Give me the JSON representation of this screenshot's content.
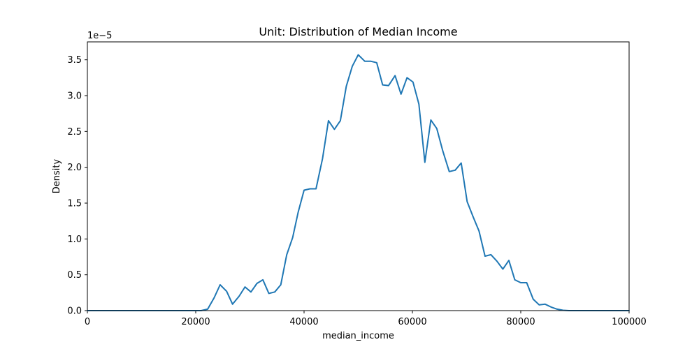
{
  "chart_data": {
    "type": "line",
    "title": "Unit: Distribution of Median Income",
    "xlabel": "median_income",
    "ylabel": "Density",
    "y_offset_label": "1e−5",
    "xlim": [
      0,
      100000
    ],
    "ylim": [
      0,
      3.75
    ],
    "x_ticks": [
      0,
      20000,
      40000,
      60000,
      80000,
      100000
    ],
    "x_tick_labels": [
      "0",
      "20000",
      "40000",
      "60000",
      "80000",
      "100000"
    ],
    "y_ticks": [
      0,
      0.5,
      1.0,
      1.5,
      2.0,
      2.5,
      3.0,
      3.5
    ],
    "y_tick_labels": [
      "0.0",
      "0.5",
      "1.0",
      "1.5",
      "2.0",
      "2.5",
      "3.0",
      "3.5"
    ],
    "grid": false,
    "legend": "none",
    "series_color": "#1f77b4",
    "series": [
      {
        "name": "",
        "x": [
          0,
          20000,
          21000,
          22200,
          23400,
          24500,
          25700,
          26800,
          28000,
          29100,
          30200,
          31300,
          32400,
          33500,
          34600,
          35700,
          36800,
          37900,
          38900,
          40000,
          41100,
          42200,
          43400,
          44500,
          45600,
          46700,
          47800,
          48900,
          50000,
          51200,
          52300,
          53400,
          54500,
          55600,
          56800,
          57900,
          59000,
          60100,
          61200,
          62300,
          63400,
          64500,
          65600,
          66800,
          67900,
          69000,
          70100,
          71200,
          72300,
          73400,
          74500,
          75600,
          76700,
          77800,
          78900,
          80000,
          81100,
          82300,
          83400,
          84500,
          85600,
          86700,
          87800,
          88900,
          90000,
          95000,
          100000
        ],
        "values": [
          0.0,
          0.0,
          0.0,
          0.02,
          0.18,
          0.36,
          0.27,
          0.09,
          0.2,
          0.33,
          0.26,
          0.38,
          0.43,
          0.24,
          0.26,
          0.36,
          0.78,
          1.02,
          1.37,
          1.68,
          1.7,
          1.7,
          2.12,
          2.65,
          2.53,
          2.65,
          3.13,
          3.41,
          3.57,
          3.48,
          3.48,
          3.46,
          3.15,
          3.14,
          3.28,
          3.02,
          3.25,
          3.19,
          2.88,
          2.07,
          2.66,
          2.54,
          2.23,
          1.94,
          1.96,
          2.06,
          1.52,
          1.31,
          1.11,
          0.76,
          0.78,
          0.69,
          0.58,
          0.7,
          0.43,
          0.39,
          0.39,
          0.16,
          0.08,
          0.09,
          0.05,
          0.02,
          0.005,
          0.0,
          0.0,
          0.0,
          0.0
        ]
      }
    ]
  }
}
